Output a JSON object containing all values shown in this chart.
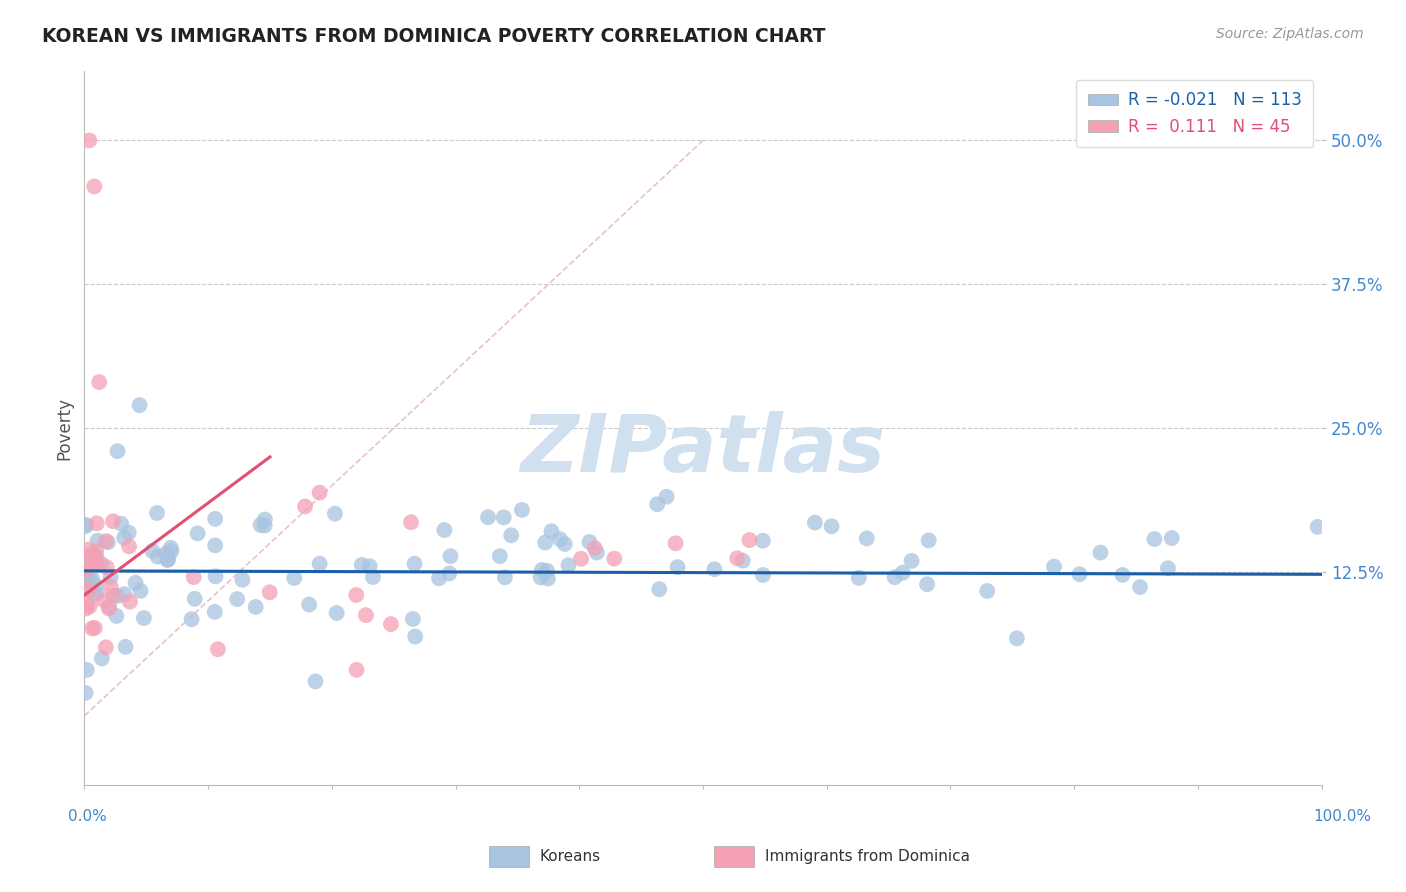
{
  "title": "KOREAN VS IMMIGRANTS FROM DOMINICA POVERTY CORRELATION CHART",
  "source": "Source: ZipAtlas.com",
  "ylabel": "Poverty",
  "ytick_labels": [
    "12.5%",
    "25.0%",
    "37.5%",
    "50.0%"
  ],
  "ytick_values": [
    0.125,
    0.25,
    0.375,
    0.5
  ],
  "xlim": [
    0,
    1.0
  ],
  "ylim": [
    -0.06,
    0.56
  ],
  "korean_R": -0.021,
  "korean_N": 113,
  "dominica_R": 0.111,
  "dominica_N": 45,
  "legend_labels": [
    "Koreans",
    "Immigrants from Dominica"
  ],
  "blue_color": "#a8c4e0",
  "pink_color": "#f4a0b5",
  "blue_line_color": "#1a5fa8",
  "pink_line_color": "#e05070",
  "diag_line_color": "#e8b0bc",
  "watermark_color": "#d0e0ee",
  "background_color": "#ffffff",
  "grid_color": "#cccccc",
  "ytick_color": "#4488cc",
  "xtick_color": "#4488cc"
}
